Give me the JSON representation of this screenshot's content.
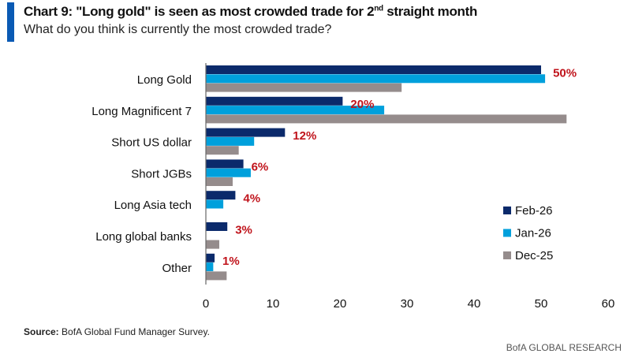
{
  "header": {
    "title_pre": "Chart 9: \"Long gold\" is seen as most crowded trade for 2",
    "title_sup": "nd",
    "title_post": " straight month",
    "subtitle": "What do you think is currently the most crowded trade?"
  },
  "footer": {
    "source_label": "Source:",
    "source_text": " BofA Global Fund Manager Survey.",
    "brand": "BofA GLOBAL RESEARCH"
  },
  "chart_data": {
    "type": "bar",
    "orientation": "horizontal",
    "title": "Chart 9: \"Long gold\" is seen as most crowded trade for 2nd straight month",
    "categories": [
      "Long Gold",
      "Long Magnificent 7",
      "Short US dollar",
      "Short JGBs",
      "Long Asia tech",
      "Long global banks",
      "Other"
    ],
    "series": [
      {
        "name": "Feb-26",
        "color": "#0b2a6b",
        "values": [
          50,
          20.4,
          11.8,
          5.6,
          4.4,
          3.2,
          1.3
        ]
      },
      {
        "name": "Jan-26",
        "color": "#00a0dc",
        "values": [
          50.6,
          26.6,
          7.2,
          6.7,
          2.6,
          0,
          1.1
        ]
      },
      {
        "name": "Dec-25",
        "color": "#958c8c",
        "values": [
          29.2,
          53.8,
          4.9,
          4.0,
          0,
          2.0,
          3.1
        ]
      }
    ],
    "data_labels": [
      "50%",
      "20%",
      "12%",
      "6%",
      "4%",
      "3%",
      "1%"
    ],
    "data_label_color": "#c0141c",
    "xlim": [
      0,
      60
    ],
    "xticks": [
      0,
      10,
      20,
      30,
      40,
      50,
      60
    ],
    "grid": false,
    "legend_position": "right"
  }
}
